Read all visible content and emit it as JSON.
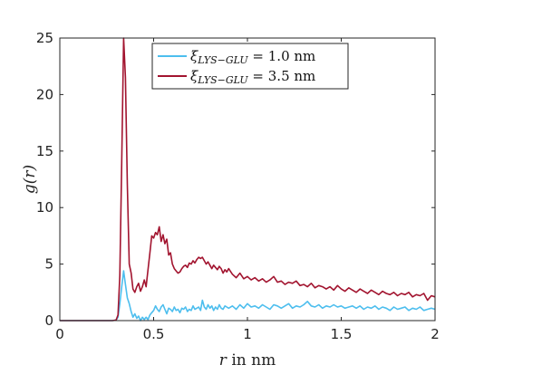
{
  "chart_data": {
    "type": "line",
    "xlabel_var": "r",
    "xlabel_rest": " in nm",
    "ylabel": "g(r)",
    "xlim": [
      0,
      2
    ],
    "ylim": [
      0,
      25
    ],
    "xticks": [
      "0",
      "0.5",
      "1",
      "1.5",
      "2"
    ],
    "yticks": [
      "0",
      "5",
      "10",
      "15",
      "20",
      "25"
    ],
    "grid": false,
    "legend_position": "top",
    "series": [
      {
        "name": "ξLYS−GLU = 1.0 nm",
        "legend_var": "ξ",
        "legend_sub": "LYS−GLU",
        "legend_value": " = 1.0 nm",
        "color": "#4DBEEE",
        "x": [
          0,
          0.28,
          0.3,
          0.31,
          0.32,
          0.33,
          0.34,
          0.35,
          0.36,
          0.37,
          0.38,
          0.39,
          0.4,
          0.41,
          0.42,
          0.43,
          0.44,
          0.45,
          0.46,
          0.47,
          0.48,
          0.49,
          0.5,
          0.51,
          0.52,
          0.53,
          0.54,
          0.55,
          0.56,
          0.57,
          0.58,
          0.59,
          0.6,
          0.61,
          0.62,
          0.63,
          0.64,
          0.65,
          0.66,
          0.67,
          0.68,
          0.69,
          0.7,
          0.71,
          0.72,
          0.73,
          0.74,
          0.75,
          0.76,
          0.77,
          0.78,
          0.79,
          0.8,
          0.81,
          0.82,
          0.83,
          0.84,
          0.85,
          0.86,
          0.87,
          0.88,
          0.89,
          0.9,
          0.92,
          0.94,
          0.96,
          0.98,
          1.0,
          1.02,
          1.04,
          1.06,
          1.08,
          1.1,
          1.12,
          1.14,
          1.16,
          1.18,
          1.2,
          1.22,
          1.24,
          1.26,
          1.28,
          1.3,
          1.32,
          1.34,
          1.36,
          1.38,
          1.4,
          1.42,
          1.44,
          1.46,
          1.48,
          1.5,
          1.52,
          1.54,
          1.56,
          1.58,
          1.6,
          1.62,
          1.64,
          1.66,
          1.68,
          1.7,
          1.72,
          1.74,
          1.76,
          1.78,
          1.8,
          1.82,
          1.84,
          1.86,
          1.88,
          1.9,
          1.92,
          1.94,
          1.96,
          1.98,
          2.0
        ],
        "y": [
          0,
          0,
          0.05,
          0.3,
          1.5,
          3.0,
          4.4,
          3.2,
          2.0,
          1.5,
          0.8,
          0.3,
          0.6,
          0.2,
          0.4,
          0.0,
          0.3,
          0.1,
          0.3,
          0.1,
          0.5,
          0.7,
          0.9,
          1.3,
          1.0,
          0.8,
          1.2,
          1.4,
          1.0,
          0.6,
          1.1,
          1.0,
          0.8,
          1.2,
          0.9,
          1.0,
          0.7,
          1.1,
          1.0,
          1.2,
          0.8,
          1.0,
          0.9,
          1.3,
          1.0,
          1.1,
          1.2,
          0.9,
          1.8,
          1.2,
          1.0,
          1.4,
          1.1,
          1.3,
          0.9,
          1.2,
          1.0,
          1.4,
          1.1,
          1.0,
          1.3,
          1.2,
          1.1,
          1.3,
          1.0,
          1.4,
          1.1,
          1.5,
          1.2,
          1.3,
          1.1,
          1.4,
          1.2,
          1.0,
          1.4,
          1.3,
          1.1,
          1.3,
          1.5,
          1.1,
          1.3,
          1.2,
          1.4,
          1.7,
          1.3,
          1.2,
          1.4,
          1.1,
          1.3,
          1.2,
          1.4,
          1.2,
          1.3,
          1.1,
          1.2,
          1.3,
          1.1,
          1.3,
          1.0,
          1.2,
          1.1,
          1.3,
          1.0,
          1.2,
          1.1,
          0.9,
          1.2,
          1.0,
          1.1,
          1.2,
          0.9,
          1.1,
          1.0,
          1.2,
          0.9,
          1.0,
          1.1,
          1.0
        ]
      },
      {
        "name": "ξLYS−GLU = 3.5 nm",
        "legend_var": "ξ",
        "legend_sub": "LYS−GLU",
        "legend_value": " = 3.5 nm",
        "color": "#A2142F",
        "x": [
          0,
          0.28,
          0.3,
          0.31,
          0.32,
          0.33,
          0.34,
          0.35,
          0.36,
          0.37,
          0.38,
          0.39,
          0.4,
          0.41,
          0.42,
          0.43,
          0.44,
          0.45,
          0.46,
          0.47,
          0.48,
          0.49,
          0.5,
          0.51,
          0.52,
          0.53,
          0.54,
          0.55,
          0.56,
          0.57,
          0.58,
          0.59,
          0.6,
          0.61,
          0.62,
          0.63,
          0.64,
          0.65,
          0.66,
          0.67,
          0.68,
          0.69,
          0.7,
          0.71,
          0.72,
          0.73,
          0.74,
          0.75,
          0.76,
          0.77,
          0.78,
          0.79,
          0.8,
          0.81,
          0.82,
          0.83,
          0.84,
          0.85,
          0.86,
          0.87,
          0.88,
          0.89,
          0.9,
          0.92,
          0.94,
          0.96,
          0.98,
          1.0,
          1.02,
          1.04,
          1.06,
          1.08,
          1.1,
          1.12,
          1.14,
          1.16,
          1.18,
          1.2,
          1.22,
          1.24,
          1.26,
          1.28,
          1.3,
          1.32,
          1.34,
          1.36,
          1.38,
          1.4,
          1.42,
          1.44,
          1.46,
          1.48,
          1.5,
          1.52,
          1.54,
          1.56,
          1.58,
          1.6,
          1.62,
          1.64,
          1.66,
          1.68,
          1.7,
          1.72,
          1.74,
          1.76,
          1.78,
          1.8,
          1.82,
          1.84,
          1.86,
          1.88,
          1.9,
          1.92,
          1.94,
          1.96,
          1.98,
          2.0
        ],
        "y": [
          0,
          0,
          0.05,
          0.5,
          4.0,
          14.0,
          25.0,
          21.5,
          12.0,
          5.0,
          4.2,
          2.8,
          2.5,
          3.0,
          3.3,
          2.6,
          3.0,
          3.6,
          3.0,
          4.5,
          6.0,
          7.5,
          7.3,
          7.8,
          7.6,
          8.3,
          7.0,
          7.6,
          6.8,
          7.2,
          5.8,
          6.0,
          5.0,
          4.6,
          4.4,
          4.2,
          4.3,
          4.6,
          4.8,
          4.9,
          4.7,
          5.1,
          5.0,
          5.3,
          5.1,
          5.4,
          5.6,
          5.5,
          5.6,
          5.3,
          5.0,
          5.2,
          4.9,
          4.6,
          4.9,
          4.7,
          4.5,
          4.8,
          4.6,
          4.2,
          4.5,
          4.3,
          4.6,
          4.1,
          3.8,
          4.2,
          3.7,
          3.9,
          3.6,
          3.8,
          3.5,
          3.7,
          3.4,
          3.6,
          3.9,
          3.4,
          3.5,
          3.2,
          3.4,
          3.3,
          3.5,
          3.1,
          3.2,
          3.0,
          3.3,
          2.9,
          3.1,
          3.0,
          2.8,
          3.0,
          2.7,
          3.1,
          2.8,
          2.6,
          2.9,
          2.7,
          2.5,
          2.8,
          2.6,
          2.4,
          2.7,
          2.5,
          2.3,
          2.6,
          2.4,
          2.3,
          2.5,
          2.2,
          2.4,
          2.3,
          2.5,
          2.1,
          2.3,
          2.2,
          2.4,
          1.8,
          2.2,
          2.1
        ]
      }
    ]
  }
}
